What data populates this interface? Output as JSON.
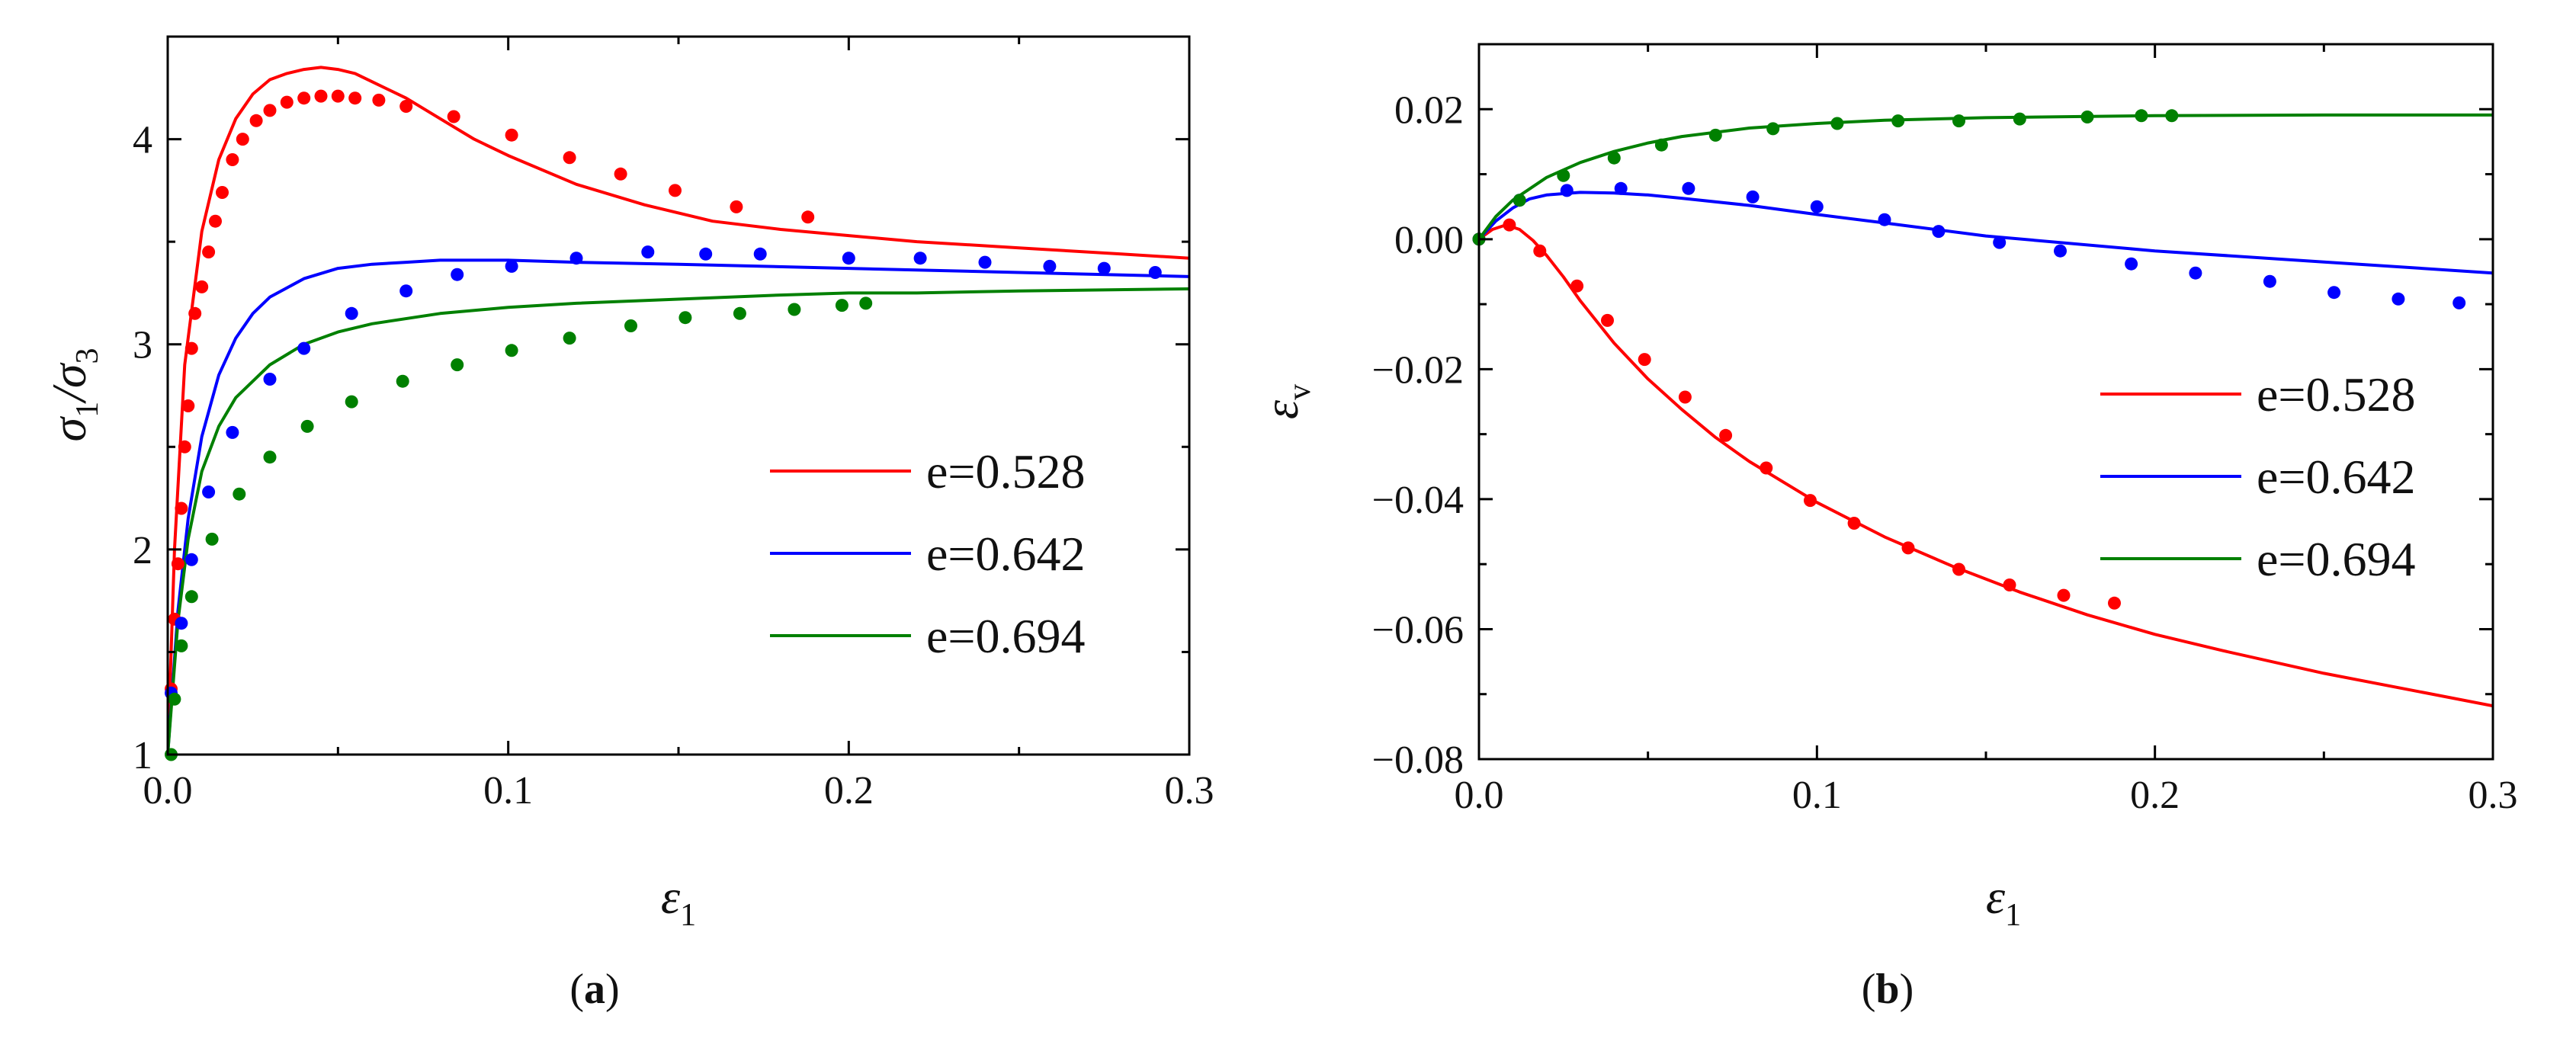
{
  "chart_data": [
    {
      "type": "line",
      "panel": "a",
      "caption_prefix": "(",
      "caption_letter": "a",
      "caption_suffix": ")",
      "xlabel": "ε1",
      "ylabel": "σ1/σ3",
      "xlim": [
        0,
        0.3
      ],
      "ylim": [
        1,
        4.5
      ],
      "xticks": [
        "0.0",
        "0.1",
        "0.2",
        "0.3"
      ],
      "yticks": [
        "1",
        "2",
        "3",
        "4"
      ],
      "legend_position": "center-right",
      "series": [
        {
          "name": "e=0.528",
          "color": "#ff0000",
          "fit": {
            "x": [
              0,
              0.002,
              0.005,
              0.01,
              0.015,
              0.02,
              0.025,
              0.03,
              0.035,
              0.04,
              0.045,
              0.05,
              0.055,
              0.06,
              0.07,
              0.08,
              0.09,
              0.1,
              0.12,
              0.14,
              0.16,
              0.18,
              0.2,
              0.22,
              0.25,
              0.28,
              0.3
            ],
            "y": [
              1.0,
              2.0,
              2.9,
              3.55,
              3.9,
              4.1,
              4.22,
              4.29,
              4.32,
              4.34,
              4.35,
              4.34,
              4.32,
              4.28,
              4.2,
              4.1,
              4.0,
              3.92,
              3.78,
              3.68,
              3.6,
              3.56,
              3.53,
              3.5,
              3.47,
              3.44,
              3.42
            ]
          },
          "points": {
            "x": [
              0.001,
              0.002,
              0.003,
              0.004,
              0.005,
              0.006,
              0.007,
              0.008,
              0.01,
              0.012,
              0.014,
              0.016,
              0.019,
              0.022,
              0.026,
              0.03,
              0.035,
              0.04,
              0.045,
              0.05,
              0.055,
              0.062,
              0.07,
              0.084,
              0.101,
              0.118,
              0.133,
              0.149,
              0.167,
              0.188
            ],
            "y": [
              1.32,
              1.66,
              1.93,
              2.2,
              2.5,
              2.7,
              2.98,
              3.15,
              3.28,
              3.45,
              3.6,
              3.74,
              3.9,
              4.0,
              4.09,
              4.14,
              4.18,
              4.2,
              4.21,
              4.21,
              4.2,
              4.19,
              4.16,
              4.11,
              4.02,
              3.91,
              3.83,
              3.75,
              3.67,
              3.62
            ]
          }
        },
        {
          "name": "e=0.642",
          "color": "#0000ff",
          "fit": {
            "x": [
              0,
              0.003,
              0.006,
              0.01,
              0.015,
              0.02,
              0.025,
              0.03,
              0.04,
              0.05,
              0.06,
              0.07,
              0.08,
              0.1,
              0.12,
              0.15,
              0.2,
              0.25,
              0.3
            ],
            "y": [
              1.0,
              1.7,
              2.15,
              2.55,
              2.85,
              3.03,
              3.15,
              3.23,
              3.32,
              3.37,
              3.39,
              3.4,
              3.41,
              3.41,
              3.4,
              3.39,
              3.37,
              3.35,
              3.33
            ]
          },
          "points": {
            "x": [
              0.001,
              0.004,
              0.007,
              0.012,
              0.019,
              0.03,
              0.04,
              0.054,
              0.07,
              0.085,
              0.101,
              0.12,
              0.141,
              0.158,
              0.174,
              0.2,
              0.221,
              0.24,
              0.259,
              0.275,
              0.29
            ],
            "y": [
              1.3,
              1.64,
              1.95,
              2.28,
              2.57,
              2.83,
              2.98,
              3.15,
              3.26,
              3.34,
              3.38,
              3.42,
              3.45,
              3.44,
              3.44,
              3.42,
              3.42,
              3.4,
              3.38,
              3.37,
              3.35
            ]
          }
        },
        {
          "name": "e=0.694",
          "color": "#008000",
          "fit": {
            "x": [
              0,
              0.003,
              0.006,
              0.01,
              0.015,
              0.02,
              0.03,
              0.04,
              0.05,
              0.06,
              0.08,
              0.1,
              0.12,
              0.15,
              0.18,
              0.2,
              0.22,
              0.25,
              0.3
            ],
            "y": [
              1.0,
              1.65,
              2.05,
              2.38,
              2.6,
              2.74,
              2.9,
              3.0,
              3.06,
              3.1,
              3.15,
              3.18,
              3.2,
              3.22,
              3.24,
              3.25,
              3.25,
              3.26,
              3.27
            ]
          },
          "points": {
            "x": [
              0.001,
              0.002,
              0.004,
              0.007,
              0.013,
              0.021,
              0.03,
              0.041,
              0.054,
              0.069,
              0.085,
              0.101,
              0.118,
              0.136,
              0.152,
              0.168,
              0.184,
              0.198,
              0.205
            ],
            "y": [
              1.0,
              1.27,
              1.53,
              1.77,
              2.05,
              2.27,
              2.45,
              2.6,
              2.72,
              2.82,
              2.9,
              2.97,
              3.03,
              3.09,
              3.13,
              3.15,
              3.17,
              3.19,
              3.2
            ]
          }
        }
      ]
    },
    {
      "type": "line",
      "panel": "b",
      "caption_prefix": "(",
      "caption_letter": "b",
      "caption_suffix": ")",
      "xlabel": "ε1",
      "ylabel": "εv",
      "xlim": [
        0,
        0.3
      ],
      "ylim": [
        -0.08,
        0.03
      ],
      "xticks": [
        "0.0",
        "0.1",
        "0.2",
        "0.3"
      ],
      "yticks": [
        "0.02",
        "0.00",
        "−0.02",
        "−0.04",
        "−0.06",
        "−0.08"
      ],
      "legend_position": "center-right",
      "series": [
        {
          "name": "e=0.528",
          "color": "#ff0000",
          "fit": {
            "x": [
              0,
              0.004,
              0.008,
              0.012,
              0.016,
              0.02,
              0.025,
              0.03,
              0.04,
              0.05,
              0.06,
              0.07,
              0.08,
              0.1,
              0.12,
              0.14,
              0.16,
              0.18,
              0.2,
              0.22,
              0.25,
              0.28,
              0.3
            ],
            "y": [
              0.0,
              0.0015,
              0.0022,
              0.0015,
              -0.0002,
              -0.0025,
              -0.0058,
              -0.0095,
              -0.016,
              -0.0215,
              -0.0262,
              -0.0305,
              -0.0342,
              -0.0405,
              -0.0458,
              -0.0503,
              -0.0543,
              -0.0578,
              -0.0608,
              -0.0633,
              -0.0668,
              -0.0698,
              -0.0718
            ]
          },
          "points": {
            "x": [
              0.0,
              0.009,
              0.018,
              0.029,
              0.038,
              0.049,
              0.061,
              0.073,
              0.085,
              0.098,
              0.111,
              0.127,
              0.142,
              0.157,
              0.173,
              0.188
            ],
            "y": [
              0.0,
              0.0022,
              -0.0018,
              -0.0072,
              -0.0125,
              -0.0185,
              -0.0243,
              -0.0302,
              -0.0352,
              -0.0402,
              -0.0437,
              -0.0475,
              -0.0508,
              -0.0532,
              -0.0548,
              -0.056
            ]
          }
        },
        {
          "name": "e=0.642",
          "color": "#0000ff",
          "fit": {
            "x": [
              0,
              0.005,
              0.01,
              0.015,
              0.02,
              0.03,
              0.04,
              0.05,
              0.06,
              0.08,
              0.1,
              0.12,
              0.15,
              0.2,
              0.25,
              0.3
            ],
            "y": [
              0.0,
              0.0028,
              0.0048,
              0.0062,
              0.0068,
              0.0072,
              0.0071,
              0.0068,
              0.0063,
              0.0052,
              0.0038,
              0.0025,
              0.0005,
              -0.0018,
              -0.0035,
              -0.0052
            ]
          },
          "points": {
            "x": [
              0.0,
              0.012,
              0.026,
              0.042,
              0.062,
              0.081,
              0.1,
              0.12,
              0.136,
              0.154,
              0.172,
              0.193,
              0.212,
              0.234,
              0.253,
              0.272,
              0.29
            ],
            "y": [
              0.0,
              0.006,
              0.0075,
              0.0078,
              0.0078,
              0.0065,
              0.005,
              0.003,
              0.0012,
              -0.0005,
              -0.0018,
              -0.0038,
              -0.0052,
              -0.0065,
              -0.0082,
              -0.0092,
              -0.0098
            ]
          }
        },
        {
          "name": "e=0.694",
          "color": "#008000",
          "fit": {
            "x": [
              0,
              0.005,
              0.01,
              0.02,
              0.03,
              0.04,
              0.05,
              0.06,
              0.08,
              0.1,
              0.12,
              0.15,
              0.2,
              0.25,
              0.3
            ],
            "y": [
              0.0,
              0.0035,
              0.006,
              0.0095,
              0.0118,
              0.0135,
              0.0148,
              0.0158,
              0.0171,
              0.0178,
              0.0183,
              0.0187,
              0.019,
              0.0191,
              0.0191
            ]
          },
          "points": {
            "x": [
              0.0,
              0.012,
              0.025,
              0.04,
              0.054,
              0.07,
              0.087,
              0.106,
              0.124,
              0.142,
              0.16,
              0.18,
              0.196,
              0.205
            ],
            "y": [
              0.0,
              0.006,
              0.0098,
              0.0125,
              0.0145,
              0.016,
              0.017,
              0.0178,
              0.0182,
              0.0182,
              0.0185,
              0.0188,
              0.019,
              0.019
            ]
          }
        }
      ]
    }
  ]
}
